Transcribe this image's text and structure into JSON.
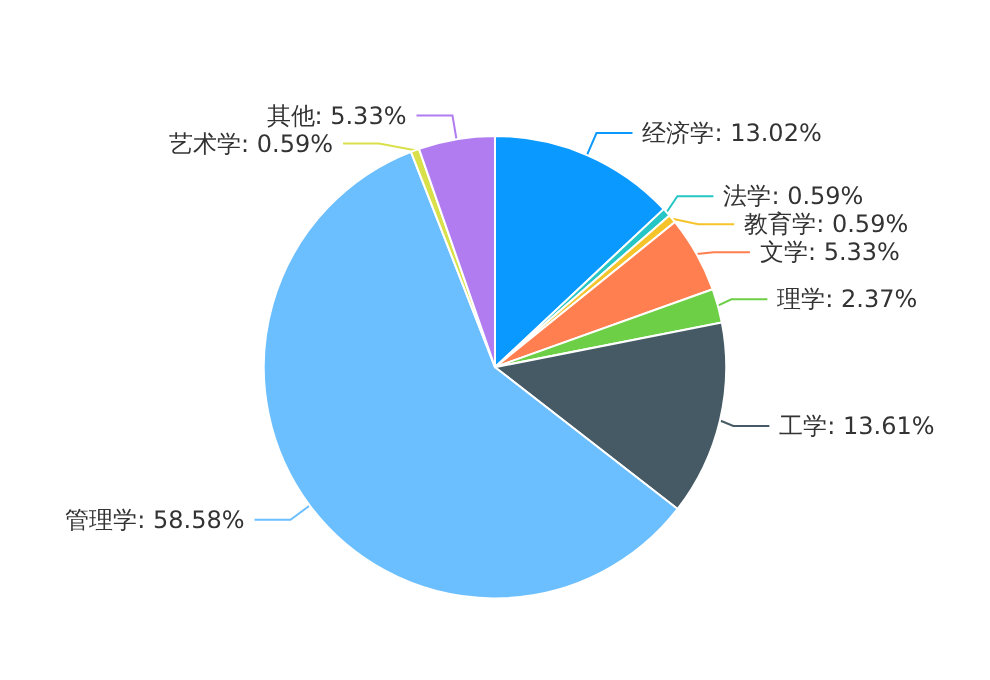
{
  "chart_data": {
    "type": "pie",
    "categories": [
      "经济学",
      "法学",
      "教育学",
      "文学",
      "理学",
      "工学",
      "管理学",
      "艺术学",
      "其他"
    ],
    "values": [
      13.02,
      0.59,
      0.59,
      5.33,
      2.37,
      13.61,
      58.58,
      0.59,
      5.33
    ],
    "value_labels": [
      "13.02%",
      "0.59%",
      "0.59%",
      "5.33%",
      "2.37%",
      "13.61%",
      "58.58%",
      "0.59%",
      "5.33%"
    ],
    "colors": [
      "#0a99ff",
      "#26c6c6",
      "#f5c32a",
      "#ff7f50",
      "#6ccf45",
      "#455a64",
      "#6cbfff",
      "#d9e04a",
      "#b07cf0"
    ],
    "legend": false
  }
}
